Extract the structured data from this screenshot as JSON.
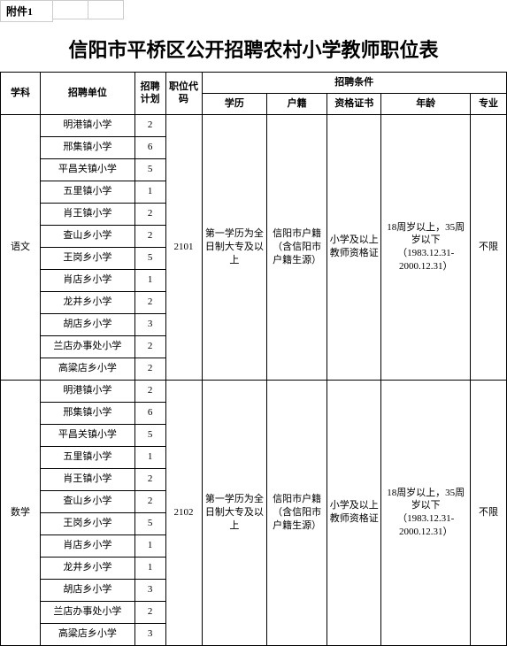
{
  "attachment_label": "附件1",
  "title": "信阳市平桥区公开招聘农村小学教师职位表",
  "headers": {
    "subject": "学科",
    "unit": "招聘单位",
    "plan": "招聘计划",
    "code": "职位代码",
    "conditions": "招聘条件",
    "education": "学历",
    "huji": "户籍",
    "cert": "资格证书",
    "age": "年龄",
    "major": "专业"
  },
  "condition_text": {
    "education": "第一学历为全日制大专及以上",
    "huji": "信阳市户籍（含信阳市户籍生源）",
    "cert": "小学及以上教师资格证",
    "age": "18周岁以上，35周岁以下（1983.12.31-2000.12.31）",
    "major": "不限"
  },
  "groups": [
    {
      "subject": "语文",
      "code": "2101",
      "rows": [
        {
          "unit": "明港镇小学",
          "plan": "2"
        },
        {
          "unit": "邢集镇小学",
          "plan": "6"
        },
        {
          "unit": "平昌关镇小学",
          "plan": "5"
        },
        {
          "unit": "五里镇小学",
          "plan": "1"
        },
        {
          "unit": "肖王镇小学",
          "plan": "2"
        },
        {
          "unit": "查山乡小学",
          "plan": "2"
        },
        {
          "unit": "王岗乡小学",
          "plan": "5"
        },
        {
          "unit": "肖店乡小学",
          "plan": "1"
        },
        {
          "unit": "龙井乡小学",
          "plan": "2"
        },
        {
          "unit": "胡店乡小学",
          "plan": "3"
        },
        {
          "unit": "兰店办事处小学",
          "plan": "2"
        },
        {
          "unit": "高粱店乡小学",
          "plan": "2"
        }
      ]
    },
    {
      "subject": "数学",
      "code": "2102",
      "rows": [
        {
          "unit": "明港镇小学",
          "plan": "2"
        },
        {
          "unit": "邢集镇小学",
          "plan": "6"
        },
        {
          "unit": "平昌关镇小学",
          "plan": "5"
        },
        {
          "unit": "五里镇小学",
          "plan": "1"
        },
        {
          "unit": "肖王镇小学",
          "plan": "2"
        },
        {
          "unit": "查山乡小学",
          "plan": "2"
        },
        {
          "unit": "王岗乡小学",
          "plan": "5"
        },
        {
          "unit": "肖店乡小学",
          "plan": "1"
        },
        {
          "unit": "龙井乡小学",
          "plan": "1"
        },
        {
          "unit": "胡店乡小学",
          "plan": "3"
        },
        {
          "unit": "兰店办事处小学",
          "plan": "2"
        },
        {
          "unit": "高粱店乡小学",
          "plan": "3"
        }
      ]
    }
  ]
}
